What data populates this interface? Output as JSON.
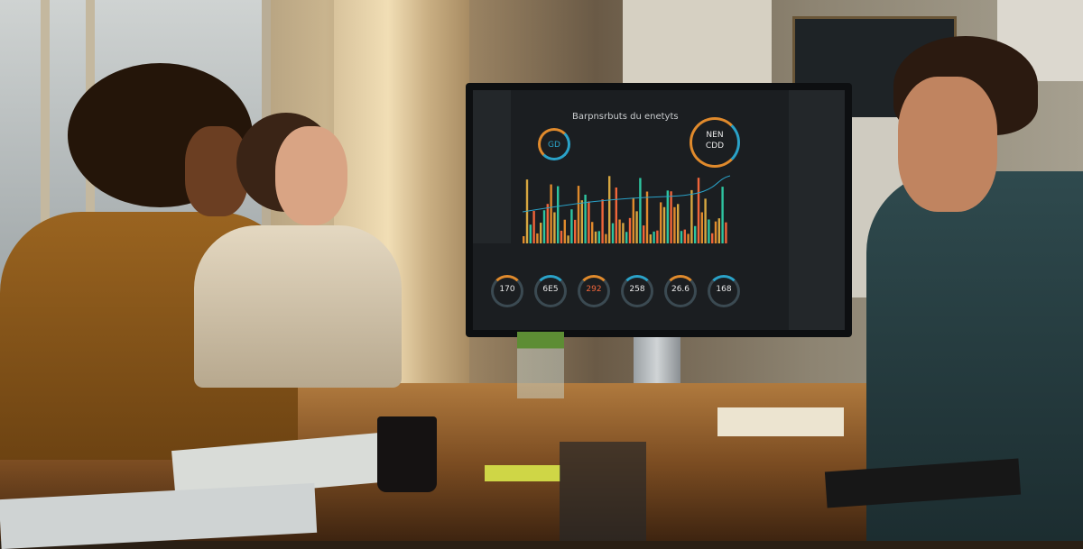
{
  "scene": "meeting-room",
  "monitor": {
    "title": "Barpnsrbuts du enetyts",
    "left_gauge_value": "GD",
    "right_gauge_value": "CDD",
    "right_gauge_label": "NEN",
    "kpis": [
      {
        "value": "170"
      },
      {
        "value": "6E5"
      },
      {
        "value": "292"
      },
      {
        "value": "258"
      },
      {
        "value": "26.6"
      },
      {
        "value": "168"
      }
    ],
    "bar_colors": [
      "#e08a2c",
      "#d6a640",
      "#2ec4a0",
      "#f0653a"
    ],
    "line_color": "#2aa2c8"
  }
}
